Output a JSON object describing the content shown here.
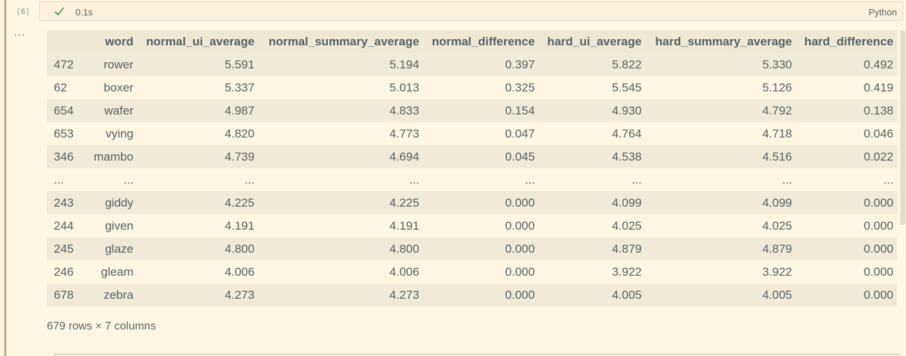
{
  "cell": {
    "execution_count": "[6]",
    "status_icon": "check-icon",
    "duration": "0.1s",
    "language": "Python",
    "output_menu": "..."
  },
  "colors": {
    "check": "#3c9a3c",
    "left_bar": "#c9a77f",
    "background": "#fdf6e3"
  },
  "table": {
    "index_header": "",
    "columns": [
      "word",
      "normal_ui_average",
      "normal_summary_average",
      "normal_difference",
      "hard_ui_average",
      "hard_summary_average",
      "hard_difference"
    ],
    "rows": [
      {
        "index": "472",
        "cells": [
          "rower",
          "5.591",
          "5.194",
          "0.397",
          "5.822",
          "5.330",
          "0.492"
        ]
      },
      {
        "index": "62",
        "cells": [
          "boxer",
          "5.337",
          "5.013",
          "0.325",
          "5.545",
          "5.126",
          "0.419"
        ]
      },
      {
        "index": "654",
        "cells": [
          "wafer",
          "4.987",
          "4.833",
          "0.154",
          "4.930",
          "4.792",
          "0.138"
        ]
      },
      {
        "index": "653",
        "cells": [
          "vying",
          "4.820",
          "4.773",
          "0.047",
          "4.764",
          "4.718",
          "0.046"
        ]
      },
      {
        "index": "346",
        "cells": [
          "mambo",
          "4.739",
          "4.694",
          "0.045",
          "4.538",
          "4.516",
          "0.022"
        ]
      },
      {
        "index": "...",
        "cells": [
          "...",
          "...",
          "...",
          "...",
          "...",
          "...",
          "..."
        ]
      },
      {
        "index": "243",
        "cells": [
          "giddy",
          "4.225",
          "4.225",
          "0.000",
          "4.099",
          "4.099",
          "0.000"
        ]
      },
      {
        "index": "244",
        "cells": [
          "given",
          "4.191",
          "4.191",
          "0.000",
          "4.025",
          "4.025",
          "0.000"
        ]
      },
      {
        "index": "245",
        "cells": [
          "glaze",
          "4.800",
          "4.800",
          "0.000",
          "4.879",
          "4.879",
          "0.000"
        ]
      },
      {
        "index": "246",
        "cells": [
          "gleam",
          "4.006",
          "4.006",
          "0.000",
          "3.922",
          "3.922",
          "0.000"
        ]
      },
      {
        "index": "678",
        "cells": [
          "zebra",
          "4.273",
          "4.273",
          "0.000",
          "4.005",
          "4.005",
          "0.000"
        ]
      }
    ],
    "footer": "679 rows × 7 columns"
  }
}
